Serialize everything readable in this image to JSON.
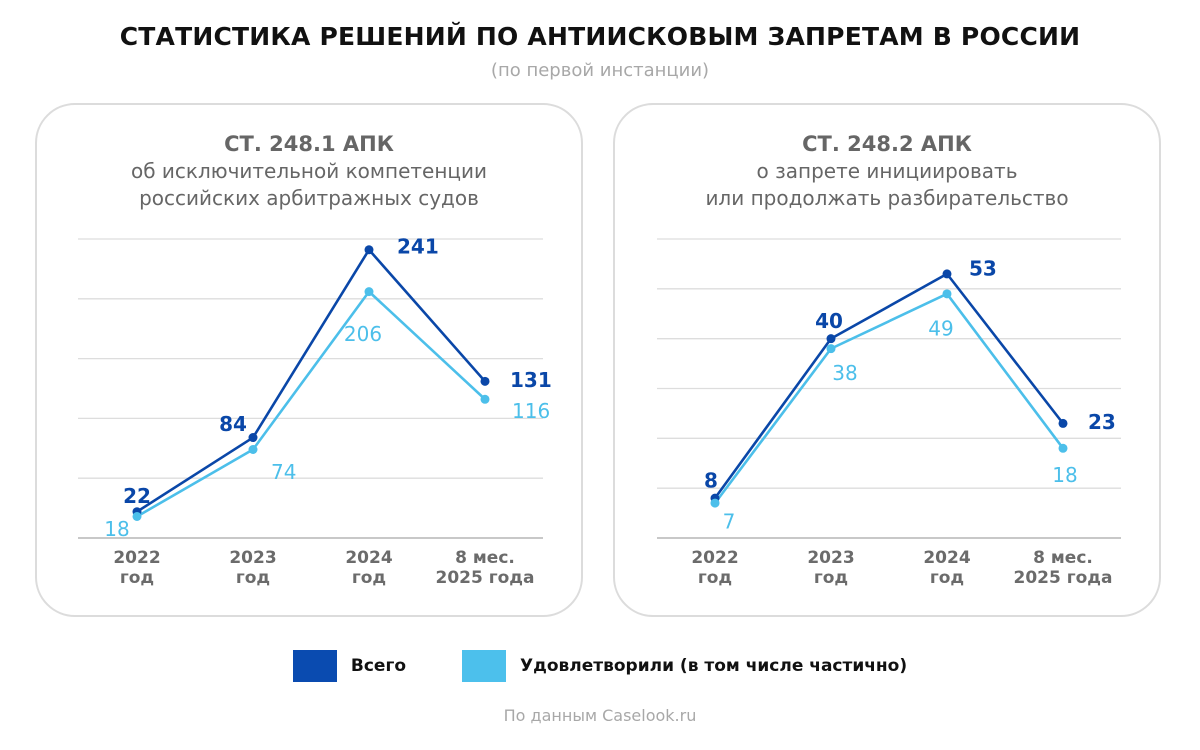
{
  "title": "СТАТИСТИКА РЕШЕНИЙ ПО АНТИИСКОВЫМ ЗАПРЕТАМ В РОССИИ",
  "subtitle": "(по первой инстанции)",
  "colors": {
    "total": "#0a47a8",
    "satisfied": "#4cbfea",
    "grid": "#dddddd",
    "axis_text": "#6b6b6b"
  },
  "legend": [
    {
      "label": "Всего",
      "color": "#0a4bb0"
    },
    {
      "label": "Удовлетворили (в том числе частично)",
      "color": "#4cc0ec"
    }
  ],
  "source": "По данным Caselook.ru",
  "chart_data": [
    {
      "type": "line",
      "title": "СТ. 248.1 АПК",
      "subtitle_lines": [
        "об исключительной компетенции",
        "российских арбитражных судов"
      ],
      "categories": [
        [
          "2022",
          "год"
        ],
        [
          "2023",
          "год"
        ],
        [
          "2024",
          "год"
        ],
        [
          "8 мес.",
          "2025 года"
        ]
      ],
      "ylim": [
        0,
        250
      ],
      "grid_step": 50,
      "series": [
        {
          "name": "Всего",
          "values": [
            22,
            84,
            241,
            131
          ]
        },
        {
          "name": "Удовлетворили (в том числе частично)",
          "values": [
            18,
            74,
            206,
            116
          ]
        }
      ]
    },
    {
      "type": "line",
      "title": "СТ. 248.2 АПК",
      "subtitle_lines": [
        "о запрете инициировать",
        "или продолжать разбирательство"
      ],
      "categories": [
        [
          "2022",
          "год"
        ],
        [
          "2023",
          "год"
        ],
        [
          "2024",
          "год"
        ],
        [
          "8 мес.",
          "2025 года"
        ]
      ],
      "ylim": [
        0,
        60
      ],
      "grid_step": 10,
      "series": [
        {
          "name": "Всего",
          "values": [
            8,
            40,
            53,
            23
          ]
        },
        {
          "name": "Удовлетворили (в том числе частично)",
          "values": [
            7,
            38,
            49,
            18
          ]
        }
      ]
    }
  ]
}
